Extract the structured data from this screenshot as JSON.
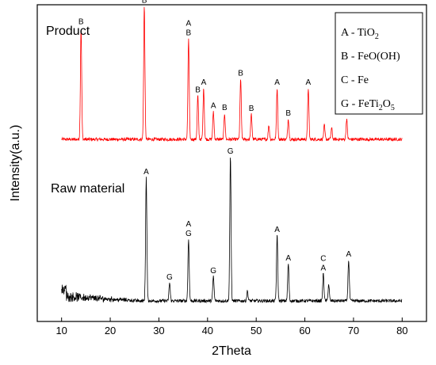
{
  "chart_data": {
    "type": "line",
    "xlabel": "2Theta",
    "ylabel": "Intensity(a.u.)",
    "xlim": [
      5,
      85
    ],
    "x_ticks": [
      "10",
      "20",
      "30",
      "40",
      "50",
      "60",
      "70",
      "80"
    ],
    "y_ticks_shown": false,
    "grid": false,
    "legend": {
      "placement": "top-right",
      "entries": [
        {
          "code": "A",
          "sep": " - ",
          "formula": "TiO",
          "sub": "2",
          "rest": ""
        },
        {
          "code": "B",
          "sep": " - ",
          "formula": "FeO(OH)",
          "sub": "",
          "rest": ""
        },
        {
          "code": "C",
          "sep": " - ",
          "formula": "Fe",
          "sub": "",
          "rest": ""
        },
        {
          "code": "G",
          "sep": " - ",
          "formula": "FeTi",
          "sub": "2",
          "rest": "O",
          "sub2": "5"
        }
      ]
    },
    "series": [
      {
        "name": "Product",
        "color": "#ff0000",
        "x_range": [
          10,
          80
        ],
        "baseline": 0.78,
        "peaks": [
          {
            "x": 14.0,
            "h": 1.2,
            "label": "B"
          },
          {
            "x": 27.0,
            "h": 1.43,
            "label": "A\nB"
          },
          {
            "x": 36.1,
            "h": 1.08,
            "label": "A\nB"
          },
          {
            "x": 38.0,
            "h": 0.47,
            "label": "B"
          },
          {
            "x": 39.2,
            "h": 0.55,
            "label": "A"
          },
          {
            "x": 41.2,
            "h": 0.3,
            "label": "A"
          },
          {
            "x": 43.5,
            "h": 0.28,
            "label": "B"
          },
          {
            "x": 46.8,
            "h": 0.65,
            "label": "B"
          },
          {
            "x": 49.0,
            "h": 0.27,
            "label": "B"
          },
          {
            "x": 52.6,
            "h": 0.15,
            "label": ""
          },
          {
            "x": 54.3,
            "h": 0.55,
            "label": "A"
          },
          {
            "x": 56.6,
            "h": 0.22,
            "label": "B"
          },
          {
            "x": 60.7,
            "h": 0.55,
            "label": "A"
          },
          {
            "x": 64.0,
            "h": 0.15,
            "label": ""
          },
          {
            "x": 65.5,
            "h": 0.12,
            "label": ""
          },
          {
            "x": 68.6,
            "h": 0.22,
            "label": ""
          }
        ]
      },
      {
        "name": "Raw material",
        "color": "#000000",
        "x_range": [
          10,
          80
        ],
        "baseline": 0.0,
        "peaks": [
          {
            "x": 27.4,
            "h": 1.5,
            "label": "A"
          },
          {
            "x": 32.2,
            "h": 0.22,
            "label": "G"
          },
          {
            "x": 36.1,
            "h": 0.75,
            "label": "A\nG"
          },
          {
            "x": 41.2,
            "h": 0.3,
            "label": "G"
          },
          {
            "x": 44.7,
            "h": 1.75,
            "label": "G"
          },
          {
            "x": 48.2,
            "h": 0.12,
            "label": ""
          },
          {
            "x": 54.3,
            "h": 0.8,
            "label": "A"
          },
          {
            "x": 56.6,
            "h": 0.45,
            "label": "A"
          },
          {
            "x": 63.8,
            "h": 0.33,
            "label": "C\nA"
          },
          {
            "x": 64.9,
            "h": 0.2,
            "label": ""
          },
          {
            "x": 69.0,
            "h": 0.5,
            "label": "A"
          }
        ]
      }
    ]
  }
}
